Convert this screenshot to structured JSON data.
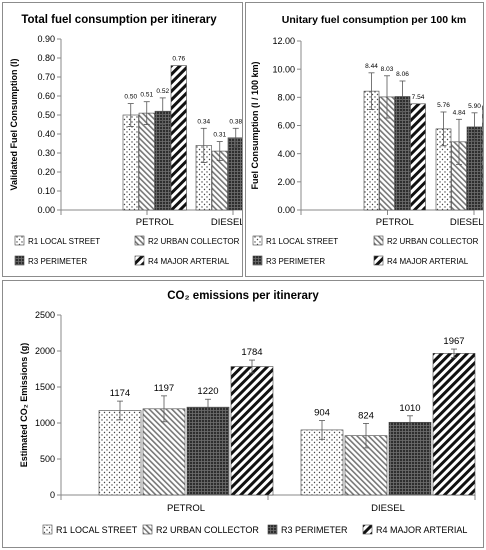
{
  "chart_data": [
    {
      "type": "bar",
      "title": "Total fuel consumption per itinerary",
      "xlabel": "",
      "ylabel": "Validated Fuel Consumption (l)",
      "categories": [
        "PETROL",
        "DIESEL"
      ],
      "ylim": [
        0,
        0.9
      ],
      "yticks": [
        "0.00",
        "0.10",
        "0.20",
        "0.30",
        "0.40",
        "0.50",
        "0.60",
        "0.70",
        "0.80",
        "0.90"
      ],
      "series": [
        {
          "name": "R1 LOCAL STREET",
          "values": [
            0.5,
            0.34
          ],
          "labels": [
            "0.50",
            "0.34"
          ],
          "errors": [
            0.06,
            0.09
          ]
        },
        {
          "name": "R2  URBAN COLLECTOR",
          "values": [
            0.51,
            0.31
          ],
          "labels": [
            "0.51",
            "0.31"
          ],
          "errors": [
            0.06,
            0.05
          ]
        },
        {
          "name": "R3 PERIMETER",
          "values": [
            0.52,
            0.38
          ],
          "labels": [
            "0.52",
            "0.38"
          ],
          "errors": [
            0.07,
            0.05
          ]
        },
        {
          "name": "R4 MAJOR ARTERIAL",
          "values": [
            0.76,
            0.74
          ],
          "labels": [
            "0.76",
            "0.74"
          ],
          "errors": [
            0.0,
            0.01
          ]
        }
      ],
      "legend_position": "bottom",
      "grid": false
    },
    {
      "type": "bar",
      "title": "Unitary fuel consumption per 100 km",
      "xlabel": "",
      "ylabel": "Fuel Consumption (l / 100 km)",
      "categories": [
        "PETROL",
        "DIESEL"
      ],
      "ylim": [
        0,
        12
      ],
      "yticks": [
        "0.00",
        "2.00",
        "4.00",
        "6.00",
        "8.00",
        "10.00",
        "12.00"
      ],
      "series": [
        {
          "name": "R1 LOCAL STREET",
          "values": [
            8.44,
            5.76
          ],
          "labels": [
            "8.44",
            "5.76"
          ],
          "errors": [
            1.3,
            1.2
          ]
        },
        {
          "name": "R2  URBAN COLLECTOR",
          "values": [
            8.03,
            4.84
          ],
          "labels": [
            "8.03",
            "4.84"
          ],
          "errors": [
            1.5,
            1.6
          ]
        },
        {
          "name": "R3 PERIMETER",
          "values": [
            8.06,
            5.9
          ],
          "labels": [
            "8.06",
            "5.90"
          ],
          "errors": [
            1.1,
            1.0
          ]
        },
        {
          "name": "R4 MAJOR ARTERIAL",
          "values": [
            7.54,
            7.39
          ],
          "labels": [
            "7.54",
            "7.39"
          ],
          "errors": [
            0.0,
            0.0
          ]
        }
      ],
      "legend_position": "bottom",
      "grid": false
    },
    {
      "type": "bar",
      "title": "CO₂ emissions per itinerary",
      "xlabel": "",
      "ylabel": "Estimated CO₂ Emissions (g)",
      "categories": [
        "PETROL",
        "DIESEL"
      ],
      "ylim": [
        0,
        2500
      ],
      "yticks": [
        "0",
        "500",
        "1000",
        "1500",
        "2000",
        "2500"
      ],
      "series": [
        {
          "name": "R1 LOCAL STREET",
          "values": [
            1174,
            904
          ],
          "labels": [
            "1174",
            "904"
          ],
          "errors": [
            130,
            130
          ]
        },
        {
          "name": "R2  URBAN COLLECTOR",
          "values": [
            1197,
            824
          ],
          "labels": [
            "1197",
            "824"
          ],
          "errors": [
            180,
            170
          ]
        },
        {
          "name": "R3 PERIMETER",
          "values": [
            1220,
            1010
          ],
          "labels": [
            "1220",
            "1010"
          ],
          "errors": [
            110,
            90
          ]
        },
        {
          "name": "R4 MAJOR ARTERIAL",
          "values": [
            1784,
            1967
          ],
          "labels": [
            "1784",
            "1967"
          ],
          "errors": [
            90,
            60
          ]
        }
      ],
      "legend_position": "bottom",
      "grid": false
    }
  ]
}
